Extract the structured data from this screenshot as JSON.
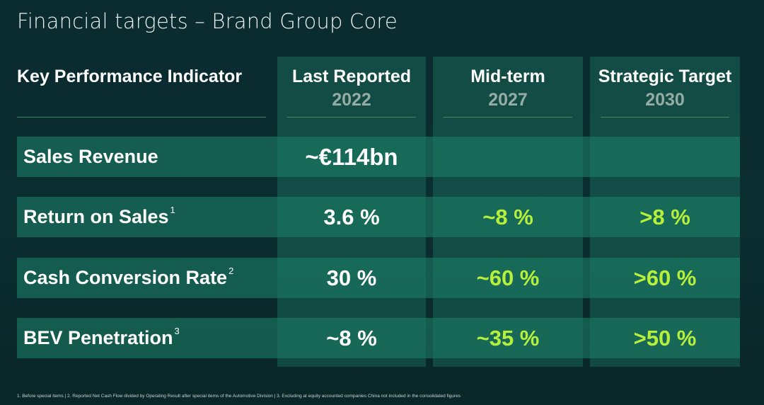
{
  "slide": {
    "title": "Financial targets – Brand Group Core"
  },
  "table": {
    "kpi_header": "Key Performance Indicator",
    "columns": [
      {
        "label": "Last Reported",
        "year": "2022"
      },
      {
        "label": "Mid-term",
        "year": "2027"
      },
      {
        "label": "Strategic Target",
        "year": "2030"
      }
    ],
    "rows": [
      {
        "label": "Sales Revenue",
        "note": "",
        "last_reported": "~€114bn",
        "mid_term": "",
        "strategic_target": ""
      },
      {
        "label": "Return on Sales",
        "note": "1",
        "last_reported": "3.6 %",
        "mid_term": "~8 %",
        "strategic_target": ">8 %"
      },
      {
        "label": "Cash Conversion Rate",
        "note": "2",
        "last_reported": "30 %",
        "mid_term": "~60 %",
        "strategic_target": ">60 %"
      },
      {
        "label": "BEV Penetration",
        "note": "3",
        "last_reported": "~8 %",
        "mid_term": "~35 %",
        "strategic_target": ">50 %"
      }
    ]
  },
  "footnote": "1. Before special items | 2. Reported Net Cash Flow divided by Operating Result after special items of the Automotive Division | 3. Excluding at equity accounted companies China not included in the consolidated figures",
  "colors": {
    "background": "#0a2b2f",
    "row_band": "#1b7a64",
    "accent_value": "#b7f03a",
    "year_text": "#95aca6"
  }
}
